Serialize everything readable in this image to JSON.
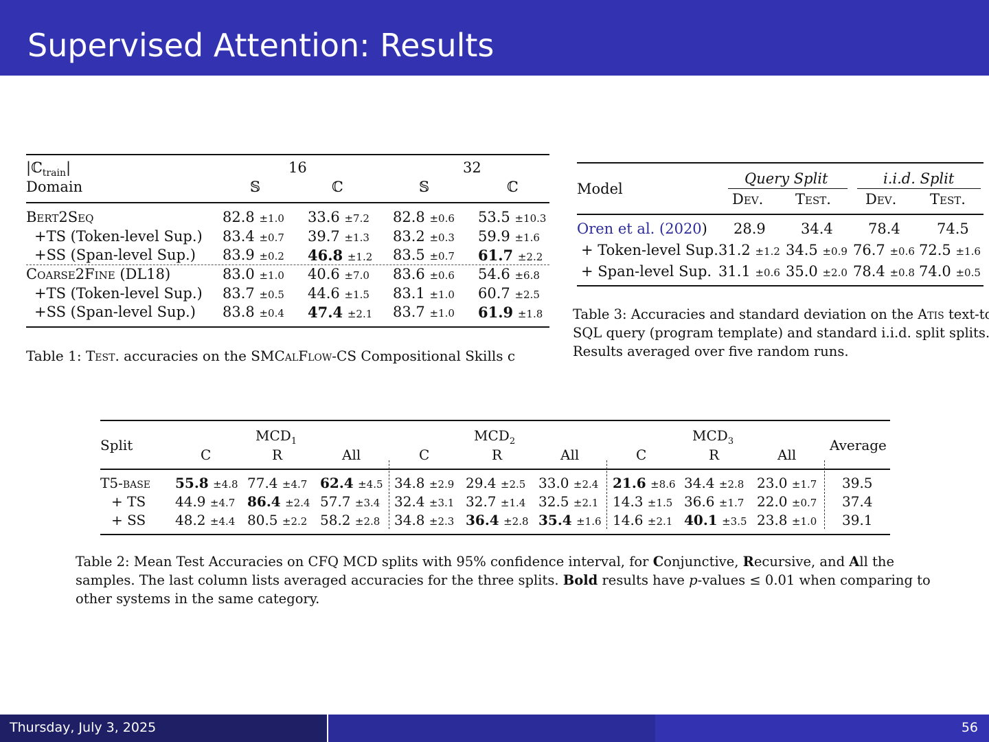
{
  "slide": {
    "title": "Supervised Attention: Results",
    "date": "Thursday, July 3, 2025",
    "page": "56"
  },
  "table1": {
    "h_train": "|ℂ",
    "h_train_sub": "train",
    "h_train_end": "|",
    "h_domain": "Domain",
    "h_16": "16",
    "h_32": "32",
    "h_s1": "𝕊",
    "h_c1": "ℂ",
    "h_s2": "𝕊",
    "h_c2": "ℂ",
    "r0": {
      "name": "Bert2Seq",
      "v": [
        "82.8",
        "33.6",
        "82.8",
        "53.5"
      ],
      "e": [
        "±1.0",
        "±7.2",
        "±0.6",
        "±10.3"
      ]
    },
    "r1": {
      "name": "+TS (Token-level Sup.)",
      "v": [
        "83.4",
        "39.7",
        "83.2",
        "59.9"
      ],
      "e": [
        "±0.7",
        "±1.3",
        "±0.3",
        "±1.6"
      ]
    },
    "r2": {
      "name": "+SS (Span-level Sup.)",
      "v": [
        "83.9",
        "46.8",
        "83.5",
        "61.7"
      ],
      "e": [
        "±0.2",
        "±1.2",
        "±0.7",
        "±2.2"
      ]
    },
    "r3": {
      "name": "Coarse2Fine (DL18)",
      "v": [
        "83.0",
        "40.6",
        "83.6",
        "54.6"
      ],
      "e": [
        "±1.0",
        "±7.0",
        "±0.6",
        "±6.8"
      ]
    },
    "r4": {
      "name": "+TS (Token-level Sup.)",
      "v": [
        "83.7",
        "44.6",
        "83.1",
        "60.7"
      ],
      "e": [
        "±0.5",
        "±1.5",
        "±1.0",
        "±2.5"
      ]
    },
    "r5": {
      "name": "+SS (Span-level Sup.)",
      "v": [
        "83.8",
        "47.4",
        "83.7",
        "61.9"
      ],
      "e": [
        "±0.4",
        "±2.1",
        "±1.0",
        "±1.8"
      ]
    },
    "caption_a": "Table 1: ",
    "caption_b": "Test",
    "caption_c": ". accuracies on the SMC",
    "caption_d": "al",
    "caption_e": "F",
    "caption_f": "low",
    "caption_g": "-CS Compositional Skills c"
  },
  "table3": {
    "h_model": "Model",
    "h_query": "Query Split",
    "h_iid": "i.i.d. Split",
    "h_dev1": "Dev.",
    "h_test1": "Test.",
    "h_dev2": "Dev.",
    "h_test2": "Test.",
    "r0": {
      "name": "Oren et al. (",
      "year": "2020",
      "close": ")",
      "v": [
        "28.9",
        "34.4",
        "78.4",
        "74.5"
      ]
    },
    "r1": {
      "name": "+ Token-level Sup.",
      "v": [
        "31.2",
        "34.5",
        "76.7",
        "72.5"
      ],
      "e": [
        "±1.2",
        "±0.9",
        "±0.6",
        "±1.6"
      ]
    },
    "r2": {
      "name": "+ Span-level Sup.",
      "v": [
        "31.1",
        "35.0",
        "78.4",
        "74.0"
      ],
      "e": [
        "±0.6",
        "±2.0",
        "±0.8",
        "±0.5"
      ]
    },
    "caption_l1a": "Table 3: Accuracies and standard deviation on the A",
    "caption_l1b": "tis",
    "caption_l1c": " text-to-",
    "caption_l2": "SQL query (program template) and standard i.i.d. split splits.",
    "caption_l3": "Results averaged over five random runs."
  },
  "table2": {
    "h_split": "Split",
    "h_mcd1": "MCD",
    "h_mcd1_sub": "1",
    "h_mcd2": "MCD",
    "h_mcd2_sub": "2",
    "h_mcd3": "MCD",
    "h_mcd3_sub": "3",
    "h_avg": "Average",
    "h_c": "C",
    "h_r": "R",
    "h_all": "All",
    "r0": {
      "name": "T5-base",
      "v": [
        "55.8",
        "77.4",
        "62.4",
        "34.8",
        "29.4",
        "33.0",
        "21.6",
        "34.4",
        "23.0"
      ],
      "e": [
        "±4.8",
        "±4.7",
        "±4.5",
        "±2.9",
        "±2.5",
        "±2.4",
        "±8.6",
        "±2.8",
        "±1.7"
      ],
      "avg": "39.5"
    },
    "r1": {
      "name": "+ TS",
      "v": [
        "44.9",
        "86.4",
        "57.7",
        "32.4",
        "32.7",
        "32.5",
        "14.3",
        "36.6",
        "22.0"
      ],
      "e": [
        "±4.7",
        "±2.4",
        "±3.4",
        "±3.1",
        "±1.4",
        "±2.1",
        "±1.5",
        "±1.7",
        "±0.7"
      ],
      "avg": "37.4"
    },
    "r2": {
      "name": "+ SS",
      "v": [
        "48.2",
        "80.5",
        "58.2",
        "34.8",
        "36.4",
        "35.4",
        "14.6",
        "40.1",
        "23.8"
      ],
      "e": [
        "±4.4",
        "±2.2",
        "±2.8",
        "±2.3",
        "±2.8",
        "±1.6",
        "±2.1",
        "±3.5",
        "±1.0"
      ],
      "avg": "39.1"
    },
    "cap1_a": "Table 2: Mean Test Accuracies on CFQ MCD splits with 95% confidence interval, for ",
    "cap1_b": "C",
    "cap1_c": "onjunctive, ",
    "cap1_d": "R",
    "cap1_e": "ecursive, and ",
    "cap1_f": "A",
    "cap1_g": "ll the",
    "cap2_a": "samples. The last column lists averaged accuracies for the three splits. ",
    "cap2_b": "Bold",
    "cap2_c": " results have ",
    "cap2_d": "p",
    "cap2_e": "-values ≤ 0.01 when comparing to",
    "cap3": "other systems in the same category."
  }
}
